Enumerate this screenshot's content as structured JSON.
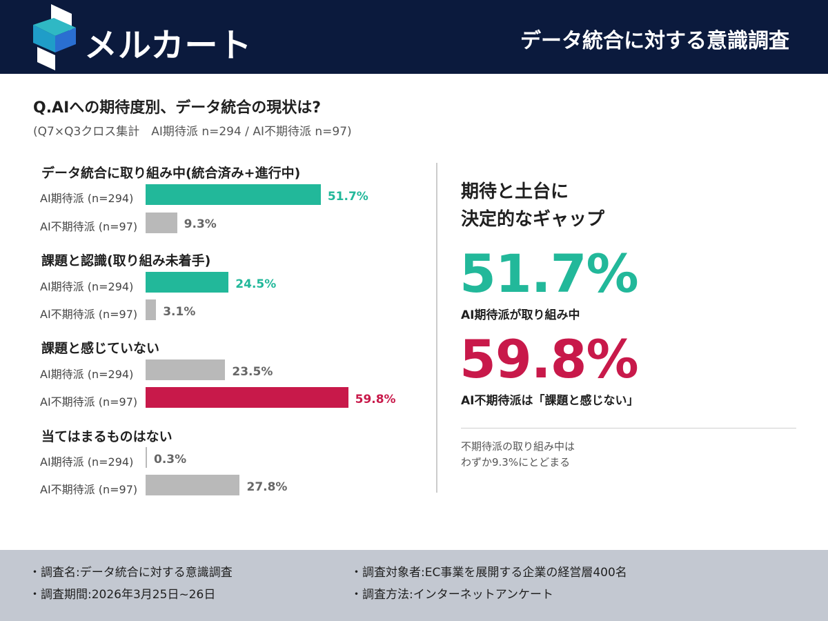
{
  "header": {
    "brand": "メルカート",
    "report_title": "データ統合に対する意識調査"
  },
  "question": {
    "title": "Q.AIへの期待度別、データ統合の現状は?",
    "subtitle": "(Q7×Q3クロス集計　AI期待派 n=294 / AI不期待派 n=97)"
  },
  "colors": {
    "teal": "#22b89a",
    "crimson": "#c8194a",
    "gray": "#b9b9b9",
    "gray_text": "#666666",
    "navy": "#0b1a3d"
  },
  "chart_data": {
    "type": "bar",
    "orientation": "horizontal",
    "groups": [
      {
        "title": "データ統合に取り組み中(統合済み+進行中)",
        "rows": [
          {
            "label": "AI期待派 (n=294)",
            "value": 51.7,
            "display": "51.7%",
            "color": "teal"
          },
          {
            "label": "AI不期待派 (n=97)",
            "value": 9.3,
            "display": "9.3%",
            "color": "gray"
          }
        ]
      },
      {
        "title": "課題と認識(取り組み未着手)",
        "rows": [
          {
            "label": "AI期待派 (n=294)",
            "value": 24.5,
            "display": "24.5%",
            "color": "teal"
          },
          {
            "label": "AI不期待派 (n=97)",
            "value": 3.1,
            "display": "3.1%",
            "color": "gray"
          }
        ]
      },
      {
        "title": "課題と感じていない",
        "rows": [
          {
            "label": "AI期待派 (n=294)",
            "value": 23.5,
            "display": "23.5%",
            "color": "gray"
          },
          {
            "label": "AI不期待派 (n=97)",
            "value": 59.8,
            "display": "59.8%",
            "color": "crimson"
          }
        ]
      },
      {
        "title": "当てはまるものはない",
        "rows": [
          {
            "label": "AI期待派 (n=294)",
            "value": 0.3,
            "display": "0.3%",
            "color": "gray"
          },
          {
            "label": "AI不期待派 (n=97)",
            "value": 27.8,
            "display": "27.8%",
            "color": "gray"
          }
        ]
      }
    ],
    "xlim": [
      0,
      100
    ]
  },
  "highlight": {
    "title_line1": "期待と土台に",
    "title_line2": "決定的なギャップ",
    "stat1_value": "51.7%",
    "stat1_caption": "AI期待派が取り組み中",
    "stat2_value": "59.8%",
    "stat2_caption": "AI不期待派は「課題と感じない」",
    "note_line1": "不期待派の取り組み中は",
    "note_line2": "わずか9.3%にとどまる"
  },
  "footer": {
    "survey_name": "・調査名:データ統合に対する意識調査",
    "survey_period": "・調査期間:2026年3月25日~26日",
    "survey_target": "・調査対象者:EC事業を展開する企業の経営層400名",
    "survey_method": "・調査方法:インターネットアンケート"
  }
}
